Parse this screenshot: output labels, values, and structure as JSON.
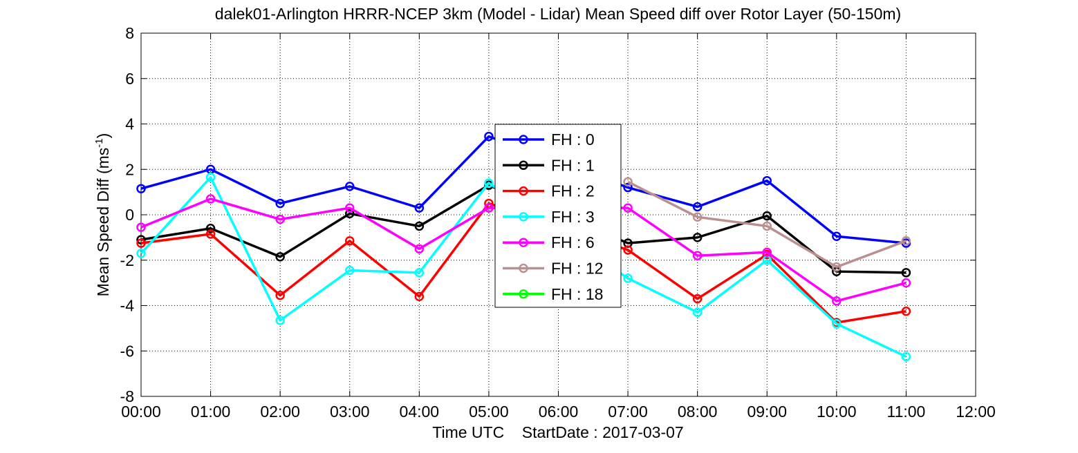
{
  "chart_data": {
    "type": "line",
    "title": "dalek01-Arlington HRRR-NCEP 3km (Model - Lidar) Mean Speed diff over Rotor Layer (50-150m)",
    "xlabel": "Time UTC    StartDate : 2017-03-07",
    "ylabel": {
      "main": "Mean Speed Diff (ms",
      "superscript": "-1",
      "close": ")"
    },
    "x_tick_labels": [
      "00:00",
      "01:00",
      "02:00",
      "03:00",
      "04:00",
      "05:00",
      "06:00",
      "07:00",
      "08:00",
      "09:00",
      "10:00",
      "11:00",
      "12:00"
    ],
    "y_ticks": [
      -8,
      -6,
      -4,
      -2,
      0,
      2,
      4,
      6,
      8
    ],
    "xlim": [
      0,
      12
    ],
    "ylim": [
      -8,
      8
    ],
    "grid": true,
    "legend_position": "center",
    "series": [
      {
        "name": "FH : 0",
        "color": "#0000ff",
        "x": [
          0,
          1,
          2,
          3,
          4,
          5,
          7,
          8,
          9,
          10,
          11
        ],
        "y": [
          1.15,
          2.0,
          0.5,
          1.25,
          0.3,
          3.45,
          1.2,
          0.35,
          1.5,
          -0.95,
          -1.25
        ]
      },
      {
        "name": "FH : 1",
        "color": "#000000",
        "x": [
          0,
          1,
          2,
          3,
          4,
          5,
          7,
          8,
          9,
          10,
          11
        ],
        "y": [
          -1.1,
          -0.6,
          -1.85,
          0.05,
          -0.5,
          1.3,
          -1.25,
          -1.0,
          -0.05,
          -2.5,
          -2.55
        ]
      },
      {
        "name": "FH : 2",
        "color": "#ff0000",
        "x": [
          0,
          1,
          2,
          3,
          4,
          5,
          7,
          8,
          9,
          10,
          11
        ],
        "y": [
          -1.25,
          -0.85,
          -3.55,
          -1.15,
          -3.6,
          0.5,
          -1.55,
          -3.7,
          -1.75,
          -4.75,
          -4.25
        ]
      },
      {
        "name": "FH : 3",
        "color": "#00ffff",
        "x": [
          0,
          1,
          2,
          3,
          4,
          5,
          7,
          8,
          9,
          10,
          11
        ],
        "y": [
          -1.7,
          1.65,
          -4.65,
          -2.45,
          -2.55,
          1.4,
          -2.8,
          -4.3,
          -2.0,
          -4.8,
          -6.25
        ]
      },
      {
        "name": "FH : 6",
        "color": "#ff00ff",
        "x": [
          0,
          1,
          2,
          3,
          4,
          5,
          7,
          8,
          9,
          10,
          11
        ],
        "y": [
          -0.55,
          0.7,
          -0.2,
          0.3,
          -1.5,
          0.3,
          0.3,
          -1.8,
          -1.65,
          -3.8,
          -3.0
        ]
      },
      {
        "name": "FH : 12",
        "color": "#bc8f8f",
        "x": [
          7,
          8,
          9,
          10,
          11
        ],
        "y": [
          1.45,
          -0.1,
          -0.5,
          -2.3,
          -1.15
        ]
      },
      {
        "name": "FH : 18",
        "color": "#00ff00",
        "x": [],
        "y": []
      }
    ]
  }
}
